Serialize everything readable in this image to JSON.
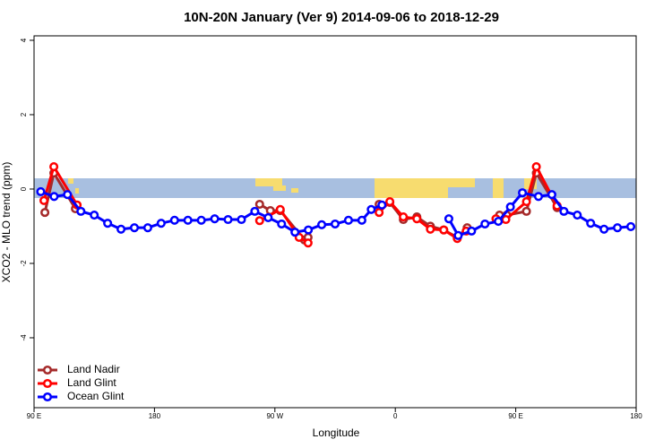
{
  "chart_data": {
    "type": "line",
    "title": "10N-20N January (Ver 9)   2014-09-06 to 2018-12-29",
    "x_label": "Longitude",
    "y_label": "XCO2 - MLO trend (ppm)",
    "xlim": [
      90,
      540
    ],
    "xticks": [
      {
        "value": 90,
        "label": "90 E"
      },
      {
        "value": 180,
        "label": "180"
      },
      {
        "value": 270,
        "label": "90 W"
      },
      {
        "value": 360,
        "label": "0"
      },
      {
        "value": 450,
        "label": "90 E"
      },
      {
        "value": 540,
        "label": "180"
      }
    ],
    "ylim": [
      -5.88,
      4.12
    ],
    "yticks": [
      -4,
      -2,
      0,
      2,
      4
    ],
    "legend": "bottomleft",
    "series": [
      {
        "name": "Land Nadir",
        "color": "#a52a2a",
        "x": [
          98.1,
          104.8,
          120.9,
          null,
          258.6,
          266.6,
          274,
          292.1,
          294.8,
          null,
          347.9,
          355.9,
          366,
          376.1,
          386.2,
          396.2,
          406.3,
          413.7,
          null,
          437.9,
          443.3,
          458,
          465.4,
          480.9
        ],
        "values": [
          -0.63,
          0.43,
          -0.53,
          null,
          -0.41,
          -0.58,
          -0.58,
          -1.37,
          -1.3,
          null,
          -0.41,
          -0.36,
          -0.82,
          -0.75,
          -1.0,
          -1.1,
          -1.3,
          -1.04,
          null,
          -0.7,
          -0.7,
          -0.6,
          0.43,
          -0.5
        ]
      },
      {
        "name": "Land Glint",
        "color": "#ff0000",
        "x": [
          97.4,
          104.8,
          122.2,
          null,
          258.6,
          274,
          288.1,
          294.8,
          null,
          347.9,
          355.9,
          366,
          376.1,
          386.2,
          396.2,
          406.3,
          413,
          null,
          435.2,
          442.6,
          458,
          465.4,
          480.9
        ],
        "values": [
          -0.31,
          0.6,
          -0.43,
          null,
          -0.85,
          -0.55,
          -1.3,
          -1.45,
          null,
          -0.63,
          -0.34,
          -0.75,
          -0.8,
          -1.08,
          -1.1,
          -1.33,
          -1.13,
          null,
          -0.8,
          -0.82,
          -0.34,
          0.6,
          -0.45
        ]
      },
      {
        "name": "Ocean Glint",
        "color": "#0000ff",
        "x": [
          95,
          105,
          115,
          125,
          135,
          145,
          155,
          165,
          175,
          185,
          195,
          205,
          215,
          225,
          235,
          245,
          255,
          265,
          275,
          285,
          295,
          305,
          315,
          325,
          335,
          342,
          350,
          null,
          400,
          407,
          417,
          427,
          437,
          446,
          455,
          467,
          477,
          486,
          496,
          506,
          516,
          526,
          536
        ],
        "values": [
          -0.07,
          -0.2,
          -0.15,
          -0.6,
          -0.7,
          -0.92,
          -1.08,
          -1.04,
          -1.04,
          -0.92,
          -0.84,
          -0.84,
          -0.84,
          -0.8,
          -0.82,
          -0.82,
          -0.6,
          -0.77,
          -0.94,
          -1.16,
          -1.1,
          -0.96,
          -0.94,
          -0.84,
          -0.84,
          -0.55,
          -0.43,
          null,
          -0.8,
          -1.25,
          -1.13,
          -0.94,
          -0.87,
          -0.48,
          -0.1,
          -0.2,
          -0.15,
          -0.6,
          -0.7,
          -0.92,
          -1.08,
          -1.04,
          -1.01
        ]
      }
    ]
  }
}
